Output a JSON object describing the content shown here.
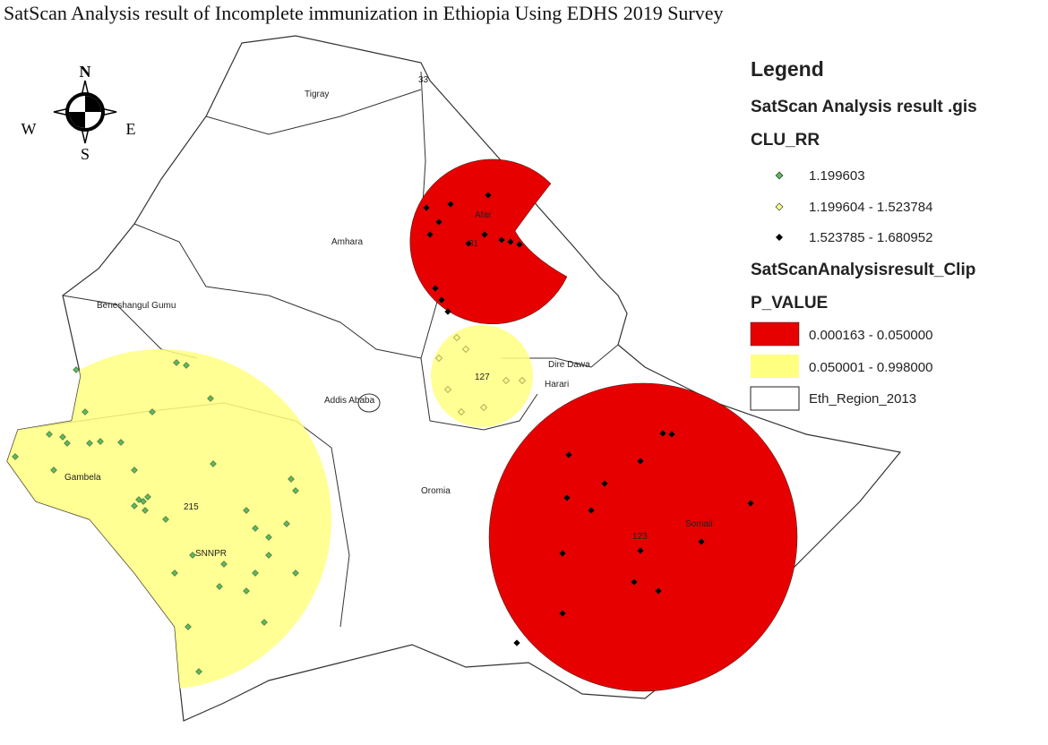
{
  "title": "SatScan Analysis result of Incomplete immunization in Ethiopia Using EDHS 2019 Survey",
  "compass": {
    "north": "N",
    "south": "S",
    "east": "E",
    "west": "W"
  },
  "regions": [
    "Tigray",
    "Afar",
    "Amhara",
    "Beneshangul Gumu",
    "Dire Dawa",
    "Harari",
    "Addis Ababa",
    "Gambela",
    "Oromia",
    "SNNPR",
    "Somali"
  ],
  "clusters": [
    "33",
    "31",
    "127",
    "215",
    "123"
  ],
  "legend": {
    "title": "Legend",
    "layer1": "SatScan Analysis result .gis",
    "field1": "CLU_RR",
    "classes1": [
      "1.199603",
      "1.199604 - 1.523784",
      "1.523785 - 1.680952"
    ],
    "layer2": "SatScanAnalysisresult_Clip",
    "field2": "P_VALUE",
    "classes2": [
      "0.000163 - 0.050000",
      "0.050001 - 0.998000"
    ],
    "layer3": "Eth_Region_2013"
  }
}
